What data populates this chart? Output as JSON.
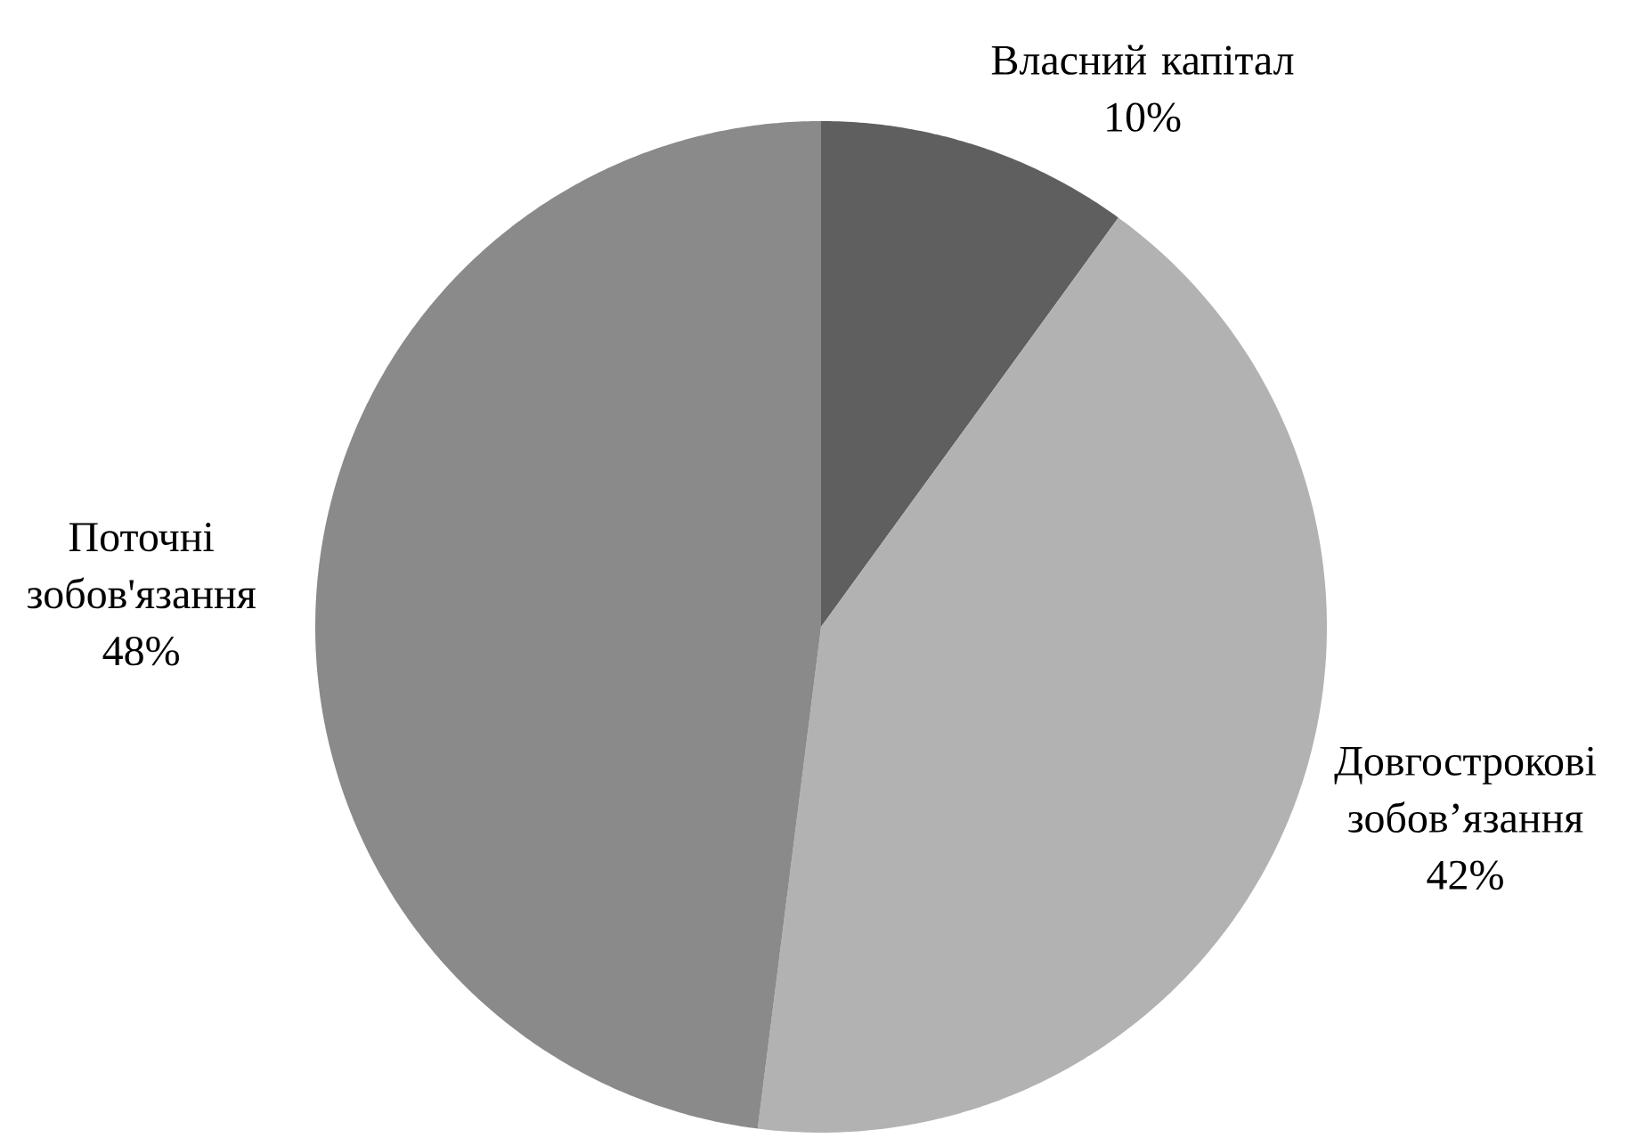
{
  "chart_data": {
    "type": "pie",
    "categories": [
      "Власний капітал",
      "Довгострокові зобов’язання",
      "Поточні зобов'язання"
    ],
    "values": [
      10,
      42,
      48
    ],
    "colors": [
      "#5f5f5f",
      "#b2b2b2",
      "#8a8a8a"
    ],
    "value_labels": [
      "10%",
      "42%",
      "48%"
    ]
  }
}
